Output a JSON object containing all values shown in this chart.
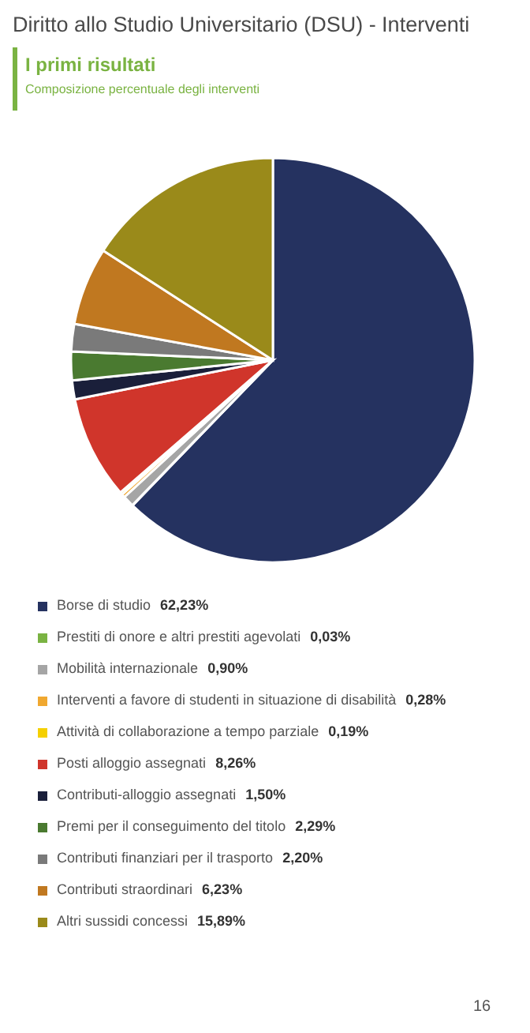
{
  "chart_data": {
    "type": "pie",
    "title": "Diritto allo Studio Universitario (DSU) - Interventi",
    "subtitle": "I primi risultati",
    "annotations": [
      "Composizione percentuale degli interventi",
      "16"
    ],
    "categories": [
      "Borse di studio",
      "Prestiti di onore e altri prestiti agevolati",
      "Mobilità internazionale",
      "Interventi a favore di studenti in situazione di disabilità",
      "Attività di collaborazione a tempo parziale",
      "Posti alloggio assegnati",
      "Contributi-alloggio assegnati",
      "Premi per il conseguimento del titolo",
      "Contributi finanziari per il trasporto",
      "Contributi straordinari",
      "Altri sussidi concessi"
    ],
    "values": [
      62.23,
      0.03,
      0.9,
      0.28,
      0.19,
      8.26,
      1.5,
      2.29,
      2.2,
      6.23,
      15.89
    ],
    "value_labels": [
      "62,23%",
      "0,03%",
      "0,90%",
      "0,28%",
      "0,19%",
      "8,26%",
      "1,50%",
      "2,29%",
      "2,20%",
      "6,23%",
      "15,89%"
    ],
    "colors": [
      "#253260",
      "#7ab342",
      "#a5a5a5",
      "#f0a830",
      "#f5d000",
      "#d0352b",
      "#1a1f3a",
      "#4a7a30",
      "#7a7a7a",
      "#c07820",
      "#9a8a1a"
    ],
    "legend": "bottom"
  }
}
